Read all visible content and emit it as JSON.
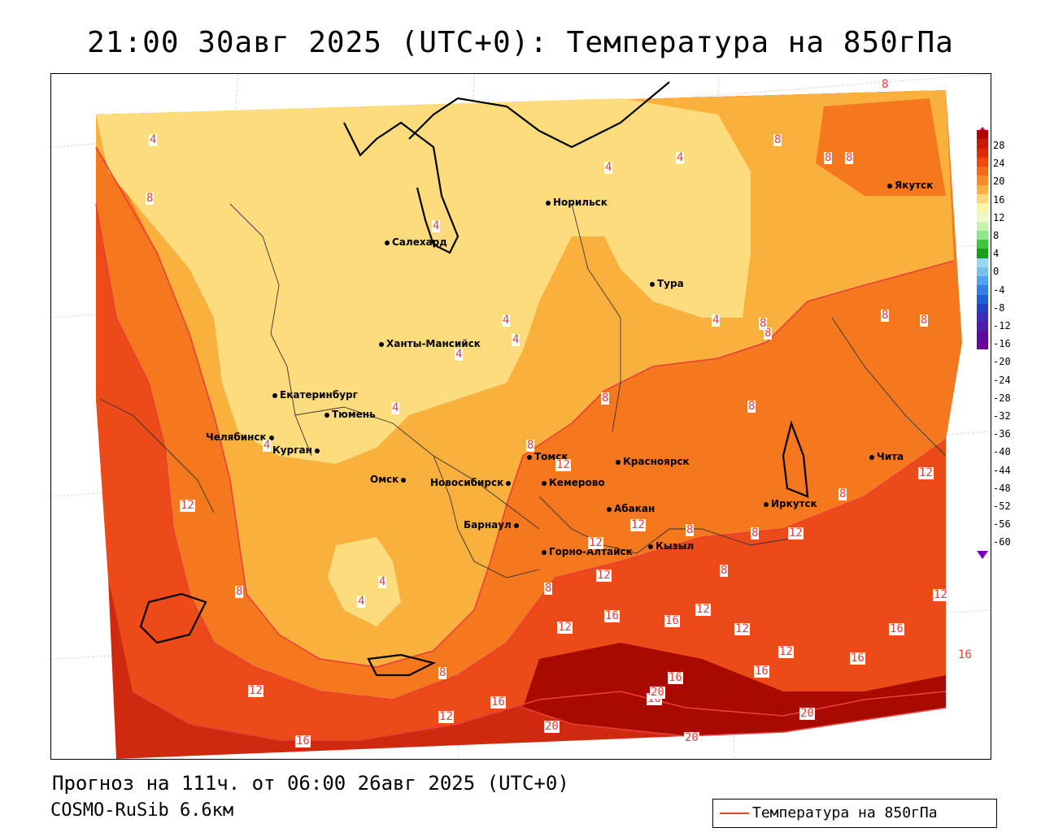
{
  "title": "21:00 30авг 2025 (UTC+0): Температура на 850гПа",
  "forecast_line": "Прогноз на 111ч. от 06:00 26авг 2025 (UTC+0)",
  "model_line": "COSMO-RuSib 6.6км",
  "legend_label": "Температура на 850гПа",
  "colorbar": {
    "ticks": [
      "28",
      "24",
      "20",
      "16",
      "12",
      "8",
      "4",
      "0",
      "-4",
      "-8",
      "-12",
      "-16",
      "-20",
      "-24",
      "-28",
      "-32",
      "-36",
      "-40",
      "-44",
      "-48",
      "-52",
      "-56",
      "-60"
    ],
    "colors": [
      "#b40000",
      "#cc1a00",
      "#e02a00",
      "#f04a10",
      "#f76a1c",
      "#f88a28",
      "#f9b040",
      "#fdd67a",
      "#fff4a8",
      "#eef9c8",
      "#c8f0b0",
      "#8ee88a",
      "#3cc83c",
      "#18a018",
      "#9ad6f0",
      "#78c0f0",
      "#4ea2f0",
      "#3280e8",
      "#2060d8",
      "#2840c8",
      "#3a2cb8",
      "#4a1ca8",
      "#5a0ca0",
      "#6a0898"
    ]
  },
  "cities": [
    {
      "name": "Норильск"
    },
    {
      "name": "Якутск"
    },
    {
      "name": "Салехард"
    },
    {
      "name": "Тура"
    },
    {
      "name": "Ханты-Мансийск"
    },
    {
      "name": "Екатеринбург"
    },
    {
      "name": "Тюмень"
    },
    {
      "name": "Челябинск"
    },
    {
      "name": "Курган"
    },
    {
      "name": "Омск"
    },
    {
      "name": "Новосибирск"
    },
    {
      "name": "Томск"
    },
    {
      "name": "Кемерово"
    },
    {
      "name": "Красноярск"
    },
    {
      "name": "Абакан"
    },
    {
      "name": "Барнаул"
    },
    {
      "name": "Горно-Алтайск"
    },
    {
      "name": "Кызыл"
    },
    {
      "name": "Иркутск"
    },
    {
      "name": "Чита"
    }
  ],
  "contour_labels": [
    "4",
    "4",
    "4",
    "4",
    "4",
    "4",
    "4",
    "4",
    "4",
    "4",
    "4",
    "4",
    "8",
    "8",
    "8",
    "8",
    "8",
    "8",
    "8",
    "8",
    "8",
    "8",
    "8",
    "8",
    "8",
    "8",
    "8",
    "8",
    "8",
    "8",
    "8",
    "12",
    "12",
    "12",
    "12",
    "12",
    "12",
    "12",
    "12",
    "12",
    "12",
    "12",
    "12",
    "12",
    "12",
    "16",
    "16",
    "16",
    "16",
    "16",
    "16",
    "16",
    "16",
    "16",
    "16",
    "20",
    "20",
    "20",
    "20"
  ],
  "colors": {
    "contour": "#e8403a",
    "coast": "#000000"
  }
}
